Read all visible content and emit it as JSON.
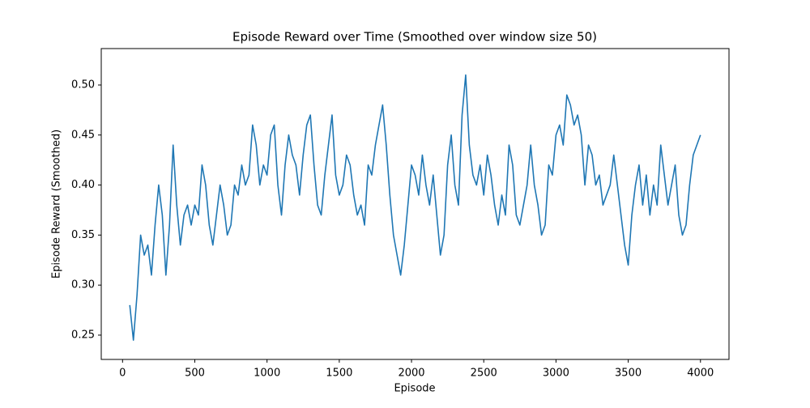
{
  "chart_data": {
    "type": "line",
    "title": "Episode Reward over Time (Smoothed over window size 50)",
    "xlabel": "Episode",
    "ylabel": "Episode Reward (Smoothed)",
    "x": [
      50,
      75,
      100,
      125,
      150,
      175,
      200,
      225,
      250,
      275,
      300,
      325,
      350,
      375,
      400,
      425,
      450,
      475,
      500,
      525,
      550,
      575,
      600,
      625,
      650,
      675,
      700,
      725,
      750,
      775,
      800,
      825,
      850,
      875,
      900,
      925,
      950,
      975,
      1000,
      1025,
      1050,
      1075,
      1100,
      1125,
      1150,
      1175,
      1200,
      1225,
      1250,
      1275,
      1300,
      1325,
      1350,
      1375,
      1400,
      1425,
      1450,
      1475,
      1500,
      1525,
      1550,
      1575,
      1600,
      1625,
      1650,
      1675,
      1700,
      1725,
      1750,
      1775,
      1800,
      1825,
      1850,
      1875,
      1900,
      1925,
      1950,
      1975,
      2000,
      2025,
      2050,
      2075,
      2100,
      2125,
      2150,
      2175,
      2200,
      2225,
      2250,
      2275,
      2300,
      2325,
      2350,
      2375,
      2400,
      2425,
      2450,
      2475,
      2500,
      2525,
      2550,
      2575,
      2600,
      2625,
      2650,
      2675,
      2700,
      2725,
      2750,
      2775,
      2800,
      2825,
      2850,
      2875,
      2900,
      2925,
      2950,
      2975,
      3000,
      3025,
      3050,
      3075,
      3100,
      3125,
      3150,
      3175,
      3200,
      3225,
      3250,
      3275,
      3300,
      3325,
      3350,
      3375,
      3400,
      3425,
      3450,
      3475,
      3500,
      3525,
      3550,
      3575,
      3600,
      3625,
      3650,
      3675,
      3700,
      3725,
      3750,
      3775,
      3800,
      3825,
      3850,
      3875,
      3900,
      3925,
      3950,
      3975,
      4000
    ],
    "series": [
      {
        "name": "Episode Reward (Smoothed)",
        "color": "#1f77b4",
        "values": [
          0.28,
          0.245,
          0.29,
          0.35,
          0.33,
          0.34,
          0.31,
          0.36,
          0.4,
          0.37,
          0.31,
          0.36,
          0.44,
          0.38,
          0.34,
          0.37,
          0.38,
          0.36,
          0.38,
          0.37,
          0.42,
          0.4,
          0.36,
          0.34,
          0.37,
          0.4,
          0.38,
          0.35,
          0.36,
          0.4,
          0.39,
          0.42,
          0.4,
          0.41,
          0.46,
          0.44,
          0.4,
          0.42,
          0.41,
          0.45,
          0.46,
          0.4,
          0.37,
          0.42,
          0.45,
          0.43,
          0.42,
          0.39,
          0.43,
          0.46,
          0.47,
          0.42,
          0.38,
          0.37,
          0.41,
          0.44,
          0.47,
          0.41,
          0.39,
          0.4,
          0.43,
          0.42,
          0.39,
          0.37,
          0.38,
          0.36,
          0.42,
          0.41,
          0.44,
          0.46,
          0.48,
          0.44,
          0.39,
          0.35,
          0.33,
          0.31,
          0.34,
          0.38,
          0.42,
          0.41,
          0.39,
          0.43,
          0.4,
          0.38,
          0.41,
          0.37,
          0.33,
          0.35,
          0.42,
          0.45,
          0.4,
          0.38,
          0.47,
          0.51,
          0.44,
          0.41,
          0.4,
          0.42,
          0.39,
          0.43,
          0.41,
          0.38,
          0.36,
          0.39,
          0.37,
          0.44,
          0.42,
          0.37,
          0.36,
          0.38,
          0.4,
          0.44,
          0.4,
          0.38,
          0.35,
          0.36,
          0.42,
          0.41,
          0.45,
          0.46,
          0.44,
          0.49,
          0.48,
          0.46,
          0.47,
          0.45,
          0.4,
          0.44,
          0.43,
          0.4,
          0.41,
          0.38,
          0.39,
          0.4,
          0.43,
          0.4,
          0.37,
          0.34,
          0.32,
          0.37,
          0.4,
          0.42,
          0.38,
          0.41,
          0.37,
          0.4,
          0.38,
          0.44,
          0.41,
          0.38,
          0.4,
          0.42,
          0.37,
          0.35,
          0.36,
          0.4,
          0.43,
          0.44,
          0.45
        ]
      }
    ],
    "xlim": [
      -147.5,
      4197.5
    ],
    "xticks": [
      0,
      500,
      1000,
      1500,
      2000,
      2500,
      3000,
      3500,
      4000
    ],
    "ylim": [
      0.2257,
      0.5364
    ],
    "yticks": [
      0.25,
      {
        "value": 0.3,
        "label": "0.30"
      },
      0.35,
      {
        "value": 0.4,
        "label": "0.40"
      },
      0.45,
      {
        "value": 0.5,
        "label": "0.50"
      }
    ],
    "grid": false
  }
}
